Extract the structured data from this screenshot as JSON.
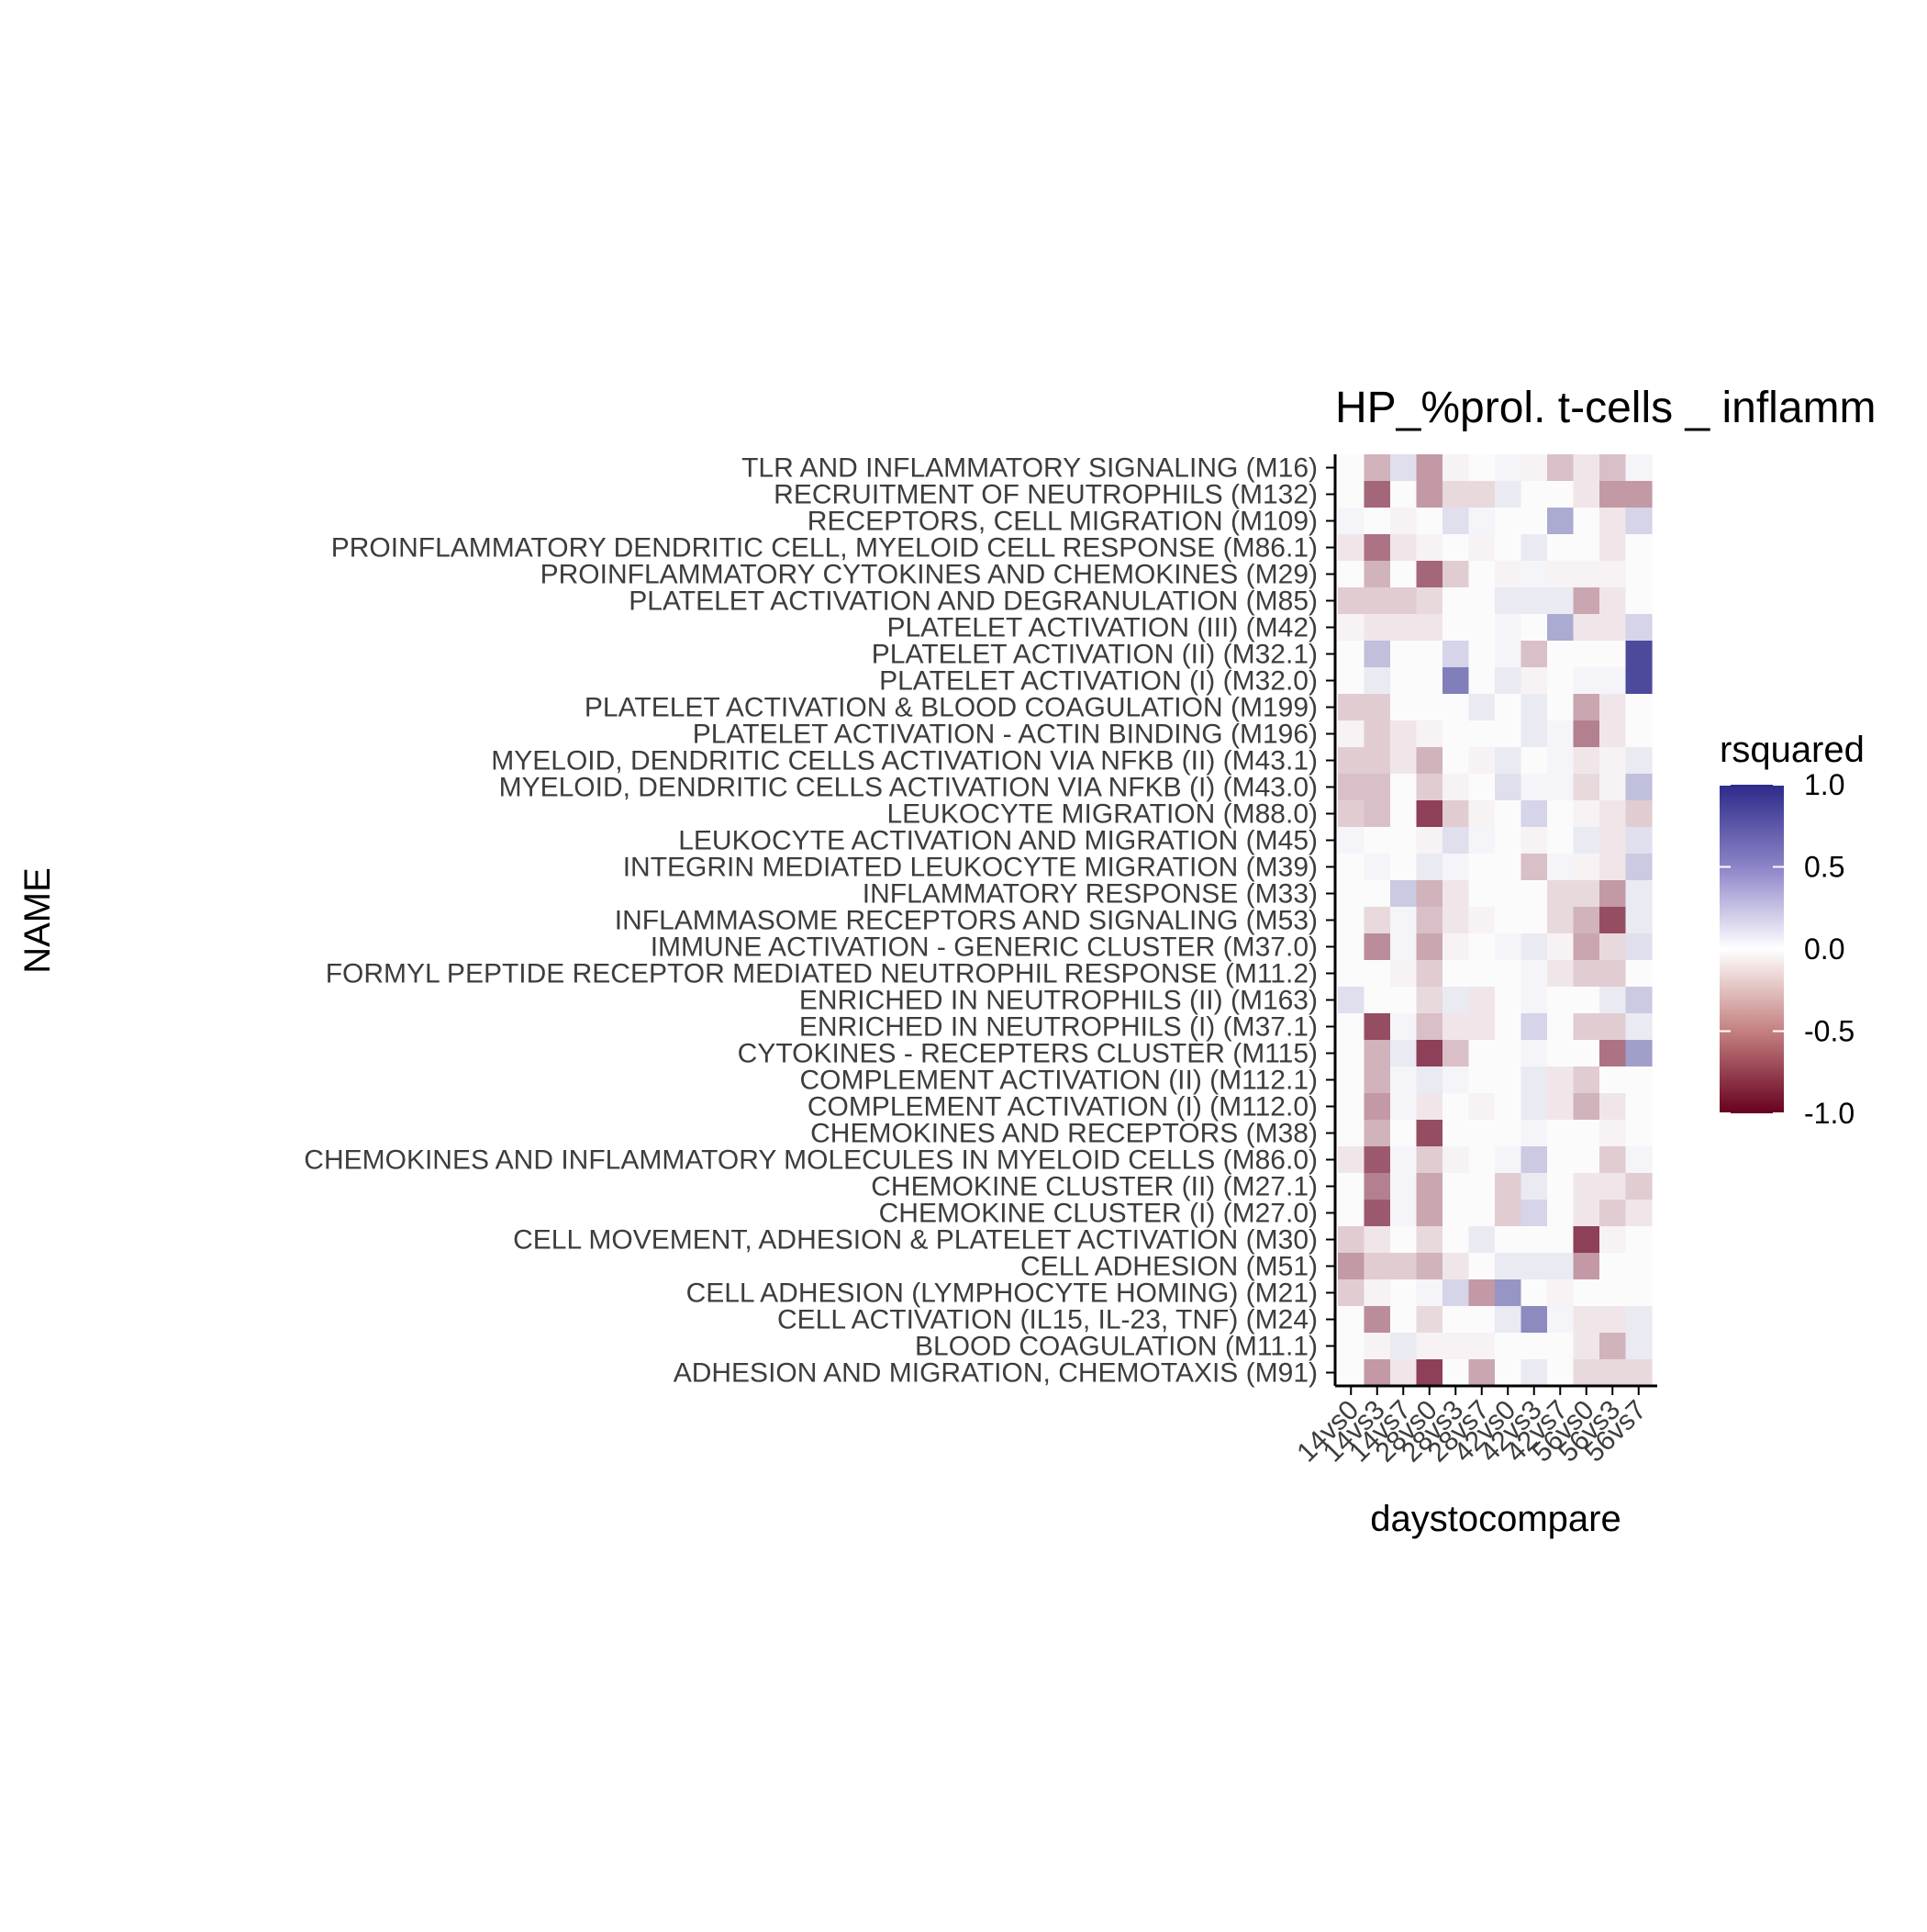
{
  "chart_data": {
    "type": "heatmap",
    "title": "HP_%prol. t-cells _ inflamm",
    "xlabel": "daystocompare",
    "ylabel": "NAME",
    "x_categories": [
      "14vs0",
      "14vs3",
      "14vs7",
      "28vs0",
      "28vs3",
      "28vs7",
      "42vs0",
      "42vs3",
      "42vs7",
      "56vs0",
      "56vs3",
      "56vs7"
    ],
    "y_categories": [
      "TLR AND INFLAMMATORY SIGNALING (M16)",
      "RECRUITMENT OF NEUTROPHILS (M132)",
      "RECEPTORS, CELL MIGRATION (M109)",
      "PROINFLAMMATORY DENDRITIC CELL, MYELOID CELL RESPONSE (M86.1)",
      "PROINFLAMMATORY CYTOKINES AND CHEMOKINES (M29)",
      "PLATELET ACTIVATION AND DEGRANULATION (M85)",
      "PLATELET ACTIVATION (III) (M42)",
      "PLATELET ACTIVATION (II) (M32.1)",
      "PLATELET ACTIVATION (I) (M32.0)",
      "PLATELET ACTIVATION & BLOOD COAGULATION (M199)",
      "PLATELET ACTIVATION - ACTIN BINDING (M196)",
      "MYELOID, DENDRITIC CELLS ACTIVATION VIA NFKB (II) (M43.1)",
      "MYELOID, DENDRITIC CELLS ACTIVATION VIA NFKB (I) (M43.0)",
      "LEUKOCYTE MIGRATION (M88.0)",
      "LEUKOCYTE ACTIVATION AND MIGRATION (M45)",
      "INTEGRIN MEDIATED LEUKOCYTE MIGRATION (M39)",
      "INFLAMMATORY RESPONSE (M33)",
      "INFLAMMASOME RECEPTORS AND SIGNALING (M53)",
      "IMMUNE ACTIVATION - GENERIC CLUSTER (M37.0)",
      "FORMYL PEPTIDE RECEPTOR MEDIATED NEUTROPHIL RESPONSE (M11.2)",
      "ENRICHED IN NEUTROPHILS (II) (M163)",
      "ENRICHED IN NEUTROPHILS (I) (M37.1)",
      "CYTOKINES - RECEPTERS CLUSTER (M115)",
      "COMPLEMENT ACTIVATION (II) (M112.1)",
      "COMPLEMENT ACTIVATION (I) (M112.0)",
      "CHEMOKINES AND RECEPTORS (M38)",
      "CHEMOKINES AND INFLAMMATORY MOLECULES IN MYELOID CELLS (M86.0)",
      "CHEMOKINE CLUSTER (II) (M27.1)",
      "CHEMOKINE CLUSTER (I) (M27.0)",
      "CELL MOVEMENT, ADHESION & PLATELET ACTIVATION (M30)",
      "CELL ADHESION (M51)",
      "CELL ADHESION (LYMPHOCYTE HOMING) (M21)",
      "CELL ACTIVATION (IL15, IL-23, TNF) (M24)",
      "BLOOD COAGULATION (M11.1)",
      "ADHESION AND MIGRATION, CHEMOTAXIS (M91)"
    ],
    "values": [
      [
        0.0,
        -0.3,
        0.15,
        -0.4,
        -0.05,
        0.0,
        0.05,
        -0.05,
        -0.25,
        -0.1,
        -0.25,
        0.05
      ],
      [
        0.0,
        -0.6,
        0.0,
        -0.4,
        -0.15,
        -0.15,
        0.1,
        0.0,
        0.0,
        -0.1,
        -0.4,
        -0.4
      ],
      [
        0.05,
        0.0,
        -0.05,
        0.0,
        0.15,
        0.05,
        0.0,
        0.0,
        0.4,
        0.0,
        -0.1,
        0.2
      ],
      [
        -0.1,
        -0.55,
        -0.1,
        -0.05,
        0.0,
        -0.05,
        0.0,
        0.1,
        0.0,
        0.0,
        -0.1,
        0.0
      ],
      [
        0.0,
        -0.3,
        0.0,
        -0.6,
        -0.2,
        0.0,
        -0.05,
        0.05,
        -0.05,
        -0.05,
        -0.05,
        0.0
      ],
      [
        -0.2,
        -0.2,
        -0.2,
        -0.15,
        0.0,
        0.0,
        0.1,
        0.1,
        0.1,
        -0.35,
        -0.1,
        0.0
      ],
      [
        -0.05,
        -0.1,
        -0.1,
        -0.1,
        0.0,
        0.0,
        0.05,
        0.0,
        0.4,
        -0.1,
        -0.1,
        0.2
      ],
      [
        0.0,
        0.3,
        0.0,
        0.0,
        0.2,
        0.0,
        0.05,
        -0.25,
        0.0,
        0.0,
        0.0,
        0.85
      ],
      [
        0.0,
        0.1,
        0.0,
        0.0,
        0.6,
        0.0,
        0.1,
        -0.05,
        0.0,
        0.05,
        0.05,
        0.85
      ],
      [
        -0.2,
        -0.2,
        0.0,
        0.0,
        0.0,
        0.1,
        0.0,
        0.1,
        0.0,
        -0.35,
        -0.1,
        0.0
      ],
      [
        -0.05,
        -0.2,
        -0.1,
        -0.05,
        0.0,
        0.0,
        0.0,
        0.1,
        0.05,
        -0.5,
        -0.1,
        0.0
      ],
      [
        -0.2,
        -0.2,
        -0.1,
        -0.3,
        0.0,
        -0.05,
        0.1,
        0.0,
        0.05,
        -0.1,
        -0.05,
        0.1
      ],
      [
        -0.25,
        -0.25,
        0.0,
        -0.2,
        -0.05,
        0.0,
        0.15,
        0.05,
        0.05,
        -0.15,
        -0.05,
        0.3
      ],
      [
        -0.2,
        -0.25,
        0.0,
        -0.75,
        -0.2,
        -0.05,
        0.0,
        0.2,
        0.0,
        -0.05,
        -0.1,
        -0.2
      ],
      [
        0.05,
        0.0,
        0.0,
        -0.05,
        0.15,
        0.05,
        0.0,
        -0.05,
        0.0,
        0.1,
        -0.1,
        0.15
      ],
      [
        0.0,
        0.05,
        0.0,
        0.1,
        0.05,
        0.0,
        0.0,
        -0.25,
        0.05,
        -0.05,
        -0.1,
        0.25
      ],
      [
        0.0,
        0.0,
        0.25,
        -0.3,
        -0.1,
        0.0,
        0.0,
        0.0,
        -0.15,
        -0.15,
        -0.4,
        0.1
      ],
      [
        0.0,
        -0.15,
        0.05,
        -0.25,
        -0.1,
        -0.05,
        0.0,
        0.0,
        -0.15,
        -0.3,
        -0.7,
        0.1
      ],
      [
        0.0,
        -0.45,
        0.05,
        -0.35,
        -0.05,
        0.0,
        0.05,
        0.1,
        -0.05,
        -0.35,
        -0.15,
        0.15
      ],
      [
        0.0,
        0.0,
        -0.05,
        -0.2,
        0.0,
        0.0,
        0.0,
        0.05,
        -0.1,
        -0.2,
        -0.2,
        0.0
      ],
      [
        0.15,
        0.0,
        0.0,
        -0.15,
        0.1,
        -0.1,
        0.0,
        0.05,
        0.0,
        0.0,
        0.1,
        0.25
      ],
      [
        0.0,
        -0.7,
        0.05,
        -0.25,
        -0.1,
        -0.1,
        0.0,
        0.2,
        0.0,
        -0.2,
        -0.2,
        0.1
      ],
      [
        0.0,
        -0.3,
        0.1,
        -0.75,
        -0.25,
        0.0,
        0.0,
        0.05,
        0.0,
        0.0,
        -0.55,
        0.45
      ],
      [
        0.0,
        -0.3,
        0.05,
        0.1,
        0.05,
        0.0,
        0.0,
        0.1,
        -0.1,
        -0.2,
        0.0,
        0.0
      ],
      [
        0.0,
        -0.4,
        0.05,
        -0.1,
        0.0,
        -0.05,
        0.0,
        0.1,
        -0.1,
        -0.3,
        -0.1,
        0.0
      ],
      [
        0.0,
        -0.3,
        0.0,
        -0.7,
        0.0,
        0.0,
        0.0,
        0.05,
        0.0,
        0.0,
        -0.05,
        0.0
      ],
      [
        -0.1,
        -0.65,
        0.05,
        -0.2,
        -0.05,
        0.0,
        0.05,
        0.25,
        0.0,
        0.0,
        -0.2,
        0.05
      ],
      [
        0.0,
        -0.5,
        0.05,
        -0.35,
        0.0,
        0.0,
        -0.2,
        0.1,
        0.0,
        -0.1,
        -0.1,
        -0.2
      ],
      [
        0.0,
        -0.65,
        0.05,
        -0.35,
        0.0,
        0.0,
        -0.2,
        0.2,
        0.0,
        -0.1,
        -0.2,
        -0.1
      ],
      [
        -0.2,
        -0.1,
        0.0,
        -0.15,
        0.0,
        0.1,
        0.0,
        0.0,
        0.0,
        -0.75,
        -0.05,
        0.0
      ],
      [
        -0.4,
        -0.2,
        -0.2,
        -0.3,
        -0.1,
        0.0,
        0.1,
        0.1,
        0.1,
        -0.4,
        0.0,
        0.0
      ],
      [
        -0.2,
        -0.05,
        0.0,
        0.05,
        0.2,
        -0.4,
        0.5,
        0.0,
        -0.05,
        0.0,
        0.0,
        0.0
      ],
      [
        0.0,
        -0.45,
        0.0,
        -0.15,
        0.0,
        0.0,
        0.1,
        0.55,
        0.05,
        -0.1,
        -0.1,
        0.1
      ],
      [
        0.0,
        -0.05,
        0.1,
        -0.05,
        -0.05,
        -0.05,
        0.0,
        0.0,
        0.0,
        -0.1,
        -0.3,
        0.1
      ],
      [
        0.0,
        -0.4,
        -0.1,
        -0.75,
        0.0,
        -0.35,
        0.0,
        0.1,
        0.0,
        -0.15,
        -0.15,
        -0.15
      ]
    ],
    "value_range": [
      -1.0,
      1.0
    ],
    "color_low": "#67001f",
    "color_mid": "#ffffff",
    "color_high": "#2d2a8a",
    "legend": {
      "title": "rsquared",
      "ticks": [
        "1.0",
        "0.5",
        "0.0",
        "-0.5",
        "-1.0"
      ],
      "tick_values": [
        1.0,
        0.5,
        0.0,
        -0.5,
        -1.0
      ],
      "position": "right"
    },
    "grid": false
  }
}
